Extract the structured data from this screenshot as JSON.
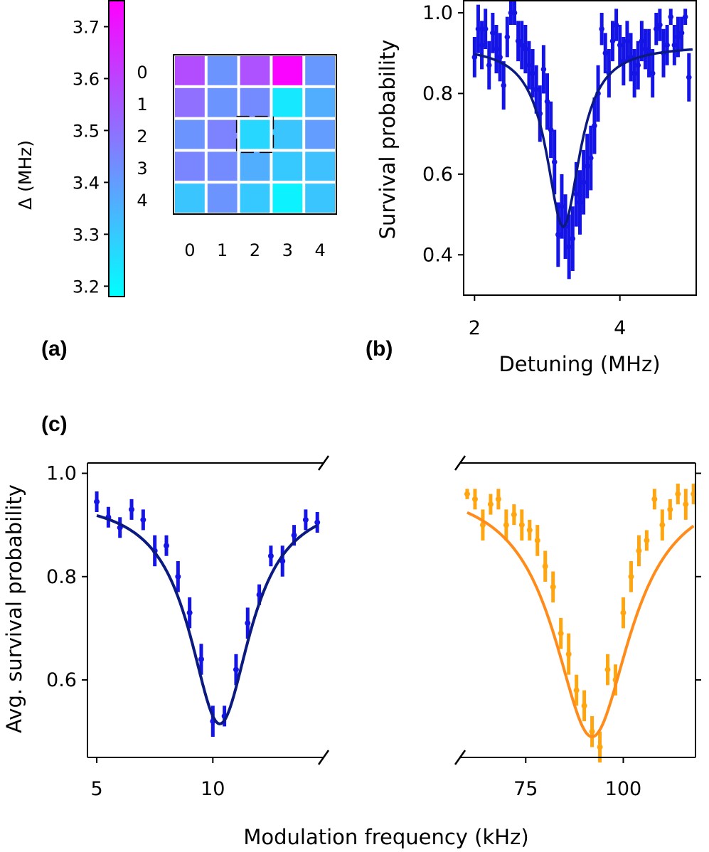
{
  "panel_labels": {
    "a": "(a)",
    "b": "(b)",
    "c": "(c)"
  },
  "colors": {
    "blue_data": "#1414e6",
    "blue_fit": "#0a1a80",
    "orange_data": "#ffa510",
    "orange_fit": "#ff8c1a",
    "grid_line": "#ffffff",
    "colormap_low": "#00ffff",
    "colormap_high": "#ff00ff"
  },
  "chart_data": [
    {
      "id": "a",
      "type": "heatmap",
      "title": "",
      "colorbar": {
        "label": "Δ (MHz)",
        "range": [
          3.18,
          3.75
        ],
        "tick_values": [
          3.2,
          3.3,
          3.4,
          3.5,
          3.6,
          3.7
        ],
        "tick_labels": [
          "3.2",
          "3.3",
          "3.4",
          "3.5",
          "3.6",
          "3.7"
        ],
        "colormap": "cool"
      },
      "x_tick_labels": [
        "0",
        "1",
        "2",
        "3",
        "4"
      ],
      "y_tick_labels": [
        "0",
        "1",
        "2",
        "3",
        "4"
      ],
      "highlighted_cell": [
        2,
        2
      ],
      "values": [
        [
          3.58,
          3.42,
          3.57,
          3.74,
          3.41
        ],
        [
          3.5,
          3.42,
          3.44,
          3.23,
          3.36
        ],
        [
          3.42,
          3.46,
          3.27,
          3.31,
          3.4
        ],
        [
          3.45,
          3.44,
          3.36,
          3.3,
          3.32
        ],
        [
          3.31,
          3.42,
          3.3,
          3.21,
          3.31
        ]
      ]
    },
    {
      "id": "b",
      "type": "scatter",
      "title": "",
      "xlabel": "Detuning (MHz)",
      "ylabel": "Survival probability",
      "xlim": [
        1.85,
        5.05
      ],
      "ylim": [
        0.3,
        1.03
      ],
      "x_ticks": [
        2,
        4
      ],
      "y_ticks": [
        0.4,
        0.6,
        0.8,
        1.0
      ],
      "y_tick_labels": [
        "0.4",
        "0.6",
        "0.8",
        "1.0"
      ],
      "series": [
        {
          "x": [
            2.0,
            2.05,
            2.1,
            2.15,
            2.2,
            2.25,
            2.3,
            2.35,
            2.4,
            2.45,
            2.5,
            2.55,
            2.6,
            2.65,
            2.7,
            2.75,
            2.8,
            2.85,
            2.9,
            2.95,
            3.0,
            3.05,
            3.1,
            3.15,
            3.2,
            3.25,
            3.3,
            3.35,
            3.4,
            3.45,
            3.5,
            3.55,
            3.6,
            3.65,
            3.7,
            3.75,
            3.8,
            3.85,
            3.9,
            3.95,
            4.0,
            4.05,
            4.1,
            4.15,
            4.2,
            4.25,
            4.3,
            4.35,
            4.4,
            4.45,
            4.5,
            4.55,
            4.6,
            4.65,
            4.7,
            4.75,
            4.8,
            4.85,
            4.9,
            4.95
          ],
          "y": [
            0.89,
            0.96,
            0.92,
            0.96,
            0.87,
            0.95,
            0.91,
            0.89,
            0.82,
            0.94,
            1.0,
            1.0,
            0.93,
            0.92,
            0.91,
            0.87,
            0.85,
            0.81,
            0.75,
            0.86,
            0.78,
            0.71,
            0.63,
            0.45,
            0.52,
            0.47,
            0.42,
            0.44,
            0.55,
            0.53,
            0.58,
            0.62,
            0.64,
            0.72,
            0.8,
            0.96,
            0.9,
            0.85,
            0.93,
            0.97,
            0.92,
            0.88,
            0.93,
            0.89,
            0.85,
            0.87,
            0.93,
            0.91,
            0.9,
            0.85,
            0.96,
            0.97,
            0.9,
            0.92,
            0.99,
            0.92,
            0.94,
            0.95,
            0.99,
            0.84
          ],
          "yerr": [
            0.05,
            0.06,
            0.06,
            0.05,
            0.06,
            0.05,
            0.06,
            0.06,
            0.06,
            0.05,
            0.03,
            0.03,
            0.05,
            0.06,
            0.06,
            0.06,
            0.06,
            0.06,
            0.07,
            0.06,
            0.07,
            0.07,
            0.08,
            0.08,
            0.08,
            0.08,
            0.08,
            0.08,
            0.08,
            0.08,
            0.08,
            0.08,
            0.08,
            0.07,
            0.07,
            0.04,
            0.05,
            0.06,
            0.05,
            0.04,
            0.05,
            0.06,
            0.05,
            0.06,
            0.06,
            0.06,
            0.05,
            0.05,
            0.06,
            0.06,
            0.04,
            0.04,
            0.06,
            0.05,
            0.02,
            0.05,
            0.05,
            0.04,
            0.02,
            0.06
          ],
          "fit": {
            "model": "lorentzian",
            "center": 3.22,
            "width": 0.28,
            "baseline": 0.92,
            "min": 0.47,
            "x_range": [
              2.0,
              5.0
            ]
          }
        }
      ]
    },
    {
      "id": "c",
      "type": "scatter",
      "title": "",
      "xlabel": "Modulation frequency (kHz)",
      "ylabel": "Avg. survival probability",
      "ylim": [
        0.45,
        1.02
      ],
      "y_ticks": [
        0.6,
        0.8,
        1.0
      ],
      "y_tick_labels": [
        "0.6",
        "0.8",
        "1.0"
      ],
      "broken_x_axis": true,
      "segments": [
        {
          "xlim": [
            4.6,
            14.8
          ],
          "x_ticks": [
            5,
            10
          ],
          "x_tick_labels": [
            "5",
            "10"
          ],
          "series": [
            {
              "color_key": "blue",
              "x": [
                5.0,
                5.5,
                6.0,
                6.5,
                7.0,
                7.5,
                8.0,
                8.5,
                9.0,
                9.5,
                10.0,
                10.5,
                11.0,
                11.5,
                12.0,
                12.5,
                13.0,
                13.5,
                14.0,
                14.5
              ],
              "y": [
                0.945,
                0.915,
                0.895,
                0.93,
                0.91,
                0.85,
                0.86,
                0.8,
                0.73,
                0.64,
                0.52,
                0.53,
                0.62,
                0.71,
                0.765,
                0.84,
                0.83,
                0.88,
                0.91,
                0.905
              ],
              "yerr": [
                0.02,
                0.02,
                0.02,
                0.02,
                0.02,
                0.03,
                0.02,
                0.03,
                0.03,
                0.03,
                0.03,
                0.02,
                0.03,
                0.03,
                0.02,
                0.02,
                0.03,
                0.02,
                0.02,
                0.02
              ],
              "fit": {
                "model": "lorentzian",
                "center": 10.3,
                "width": 1.6,
                "baseline": 0.955,
                "min": 0.515,
                "x_range": [
                  5.0,
                  14.5
                ]
              }
            }
          ]
        },
        {
          "xlim": [
            58,
            118.5
          ],
          "x_ticks": [
            75,
            100
          ],
          "x_tick_labels": [
            "75",
            "100"
          ],
          "series": [
            {
              "color_key": "orange",
              "x": [
                60,
                62,
                64,
                66,
                68,
                70,
                72,
                74,
                76,
                78,
                80,
                82,
                84,
                86,
                88,
                90,
                92,
                94,
                96,
                98,
                100,
                102,
                104,
                106,
                108,
                110,
                112,
                114,
                116,
                118
              ],
              "y": [
                0.96,
                0.95,
                0.9,
                0.94,
                0.95,
                0.9,
                0.92,
                0.9,
                0.89,
                0.87,
                0.82,
                0.78,
                0.69,
                0.65,
                0.58,
                0.55,
                0.5,
                0.47,
                0.62,
                0.6,
                0.73,
                0.8,
                0.85,
                0.87,
                0.95,
                0.9,
                0.93,
                0.96,
                0.94,
                0.96
              ],
              "yerr": [
                0.01,
                0.02,
                0.03,
                0.02,
                0.02,
                0.03,
                0.02,
                0.03,
                0.02,
                0.03,
                0.03,
                0.03,
                0.03,
                0.04,
                0.03,
                0.03,
                0.03,
                0.03,
                0.03,
                0.03,
                0.03,
                0.03,
                0.03,
                0.02,
                0.02,
                0.03,
                0.02,
                0.02,
                0.03,
                0.02
              ],
              "fit": {
                "model": "lorentzian",
                "center": 92,
                "width": 12,
                "baseline": 0.985,
                "min": 0.49,
                "x_range": [
                  60,
                  118
                ]
              }
            }
          ]
        }
      ]
    }
  ]
}
